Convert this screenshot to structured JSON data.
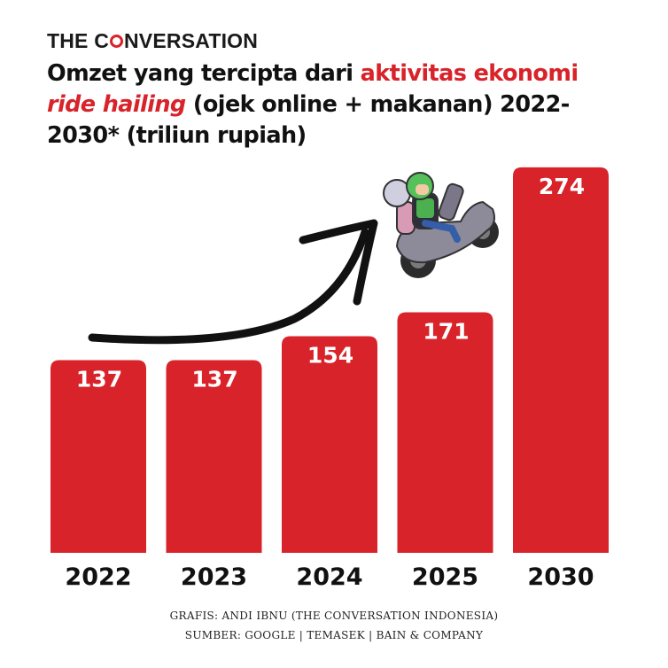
{
  "brand": {
    "before": "THE C",
    "after": "NVERSATION"
  },
  "title": {
    "part1": "Omzet yang tercipta dari ",
    "highlight": "aktivitas ekonomi",
    "italic": "ride hailing",
    "part2": " (ojek online + makanan) 2022-2030* (triliun rupiah)"
  },
  "chart_data": {
    "type": "bar",
    "categories": [
      "2022",
      "2023",
      "2024",
      "2025",
      "2030"
    ],
    "values": [
      137,
      137,
      154,
      171,
      274
    ],
    "title": "Omzet yang tercipta dari aktivitas ekonomi ride hailing (ojek online + makanan) 2022-2030* (triliun rupiah)",
    "bar_color": "#d8232a",
    "label_color": "#ffffff",
    "grid": false,
    "legend": "none"
  },
  "illustration": {
    "arrow": "upward-arrow-icon",
    "rider": "motorbike-riders-icon"
  },
  "footer": {
    "credit": "GRAFIS: ANDI IBNU (THE CONVERSATION INDONESIA)",
    "source": "SUMBER: GOOGLE | TEMASEK | BAIN & COMPANY"
  }
}
